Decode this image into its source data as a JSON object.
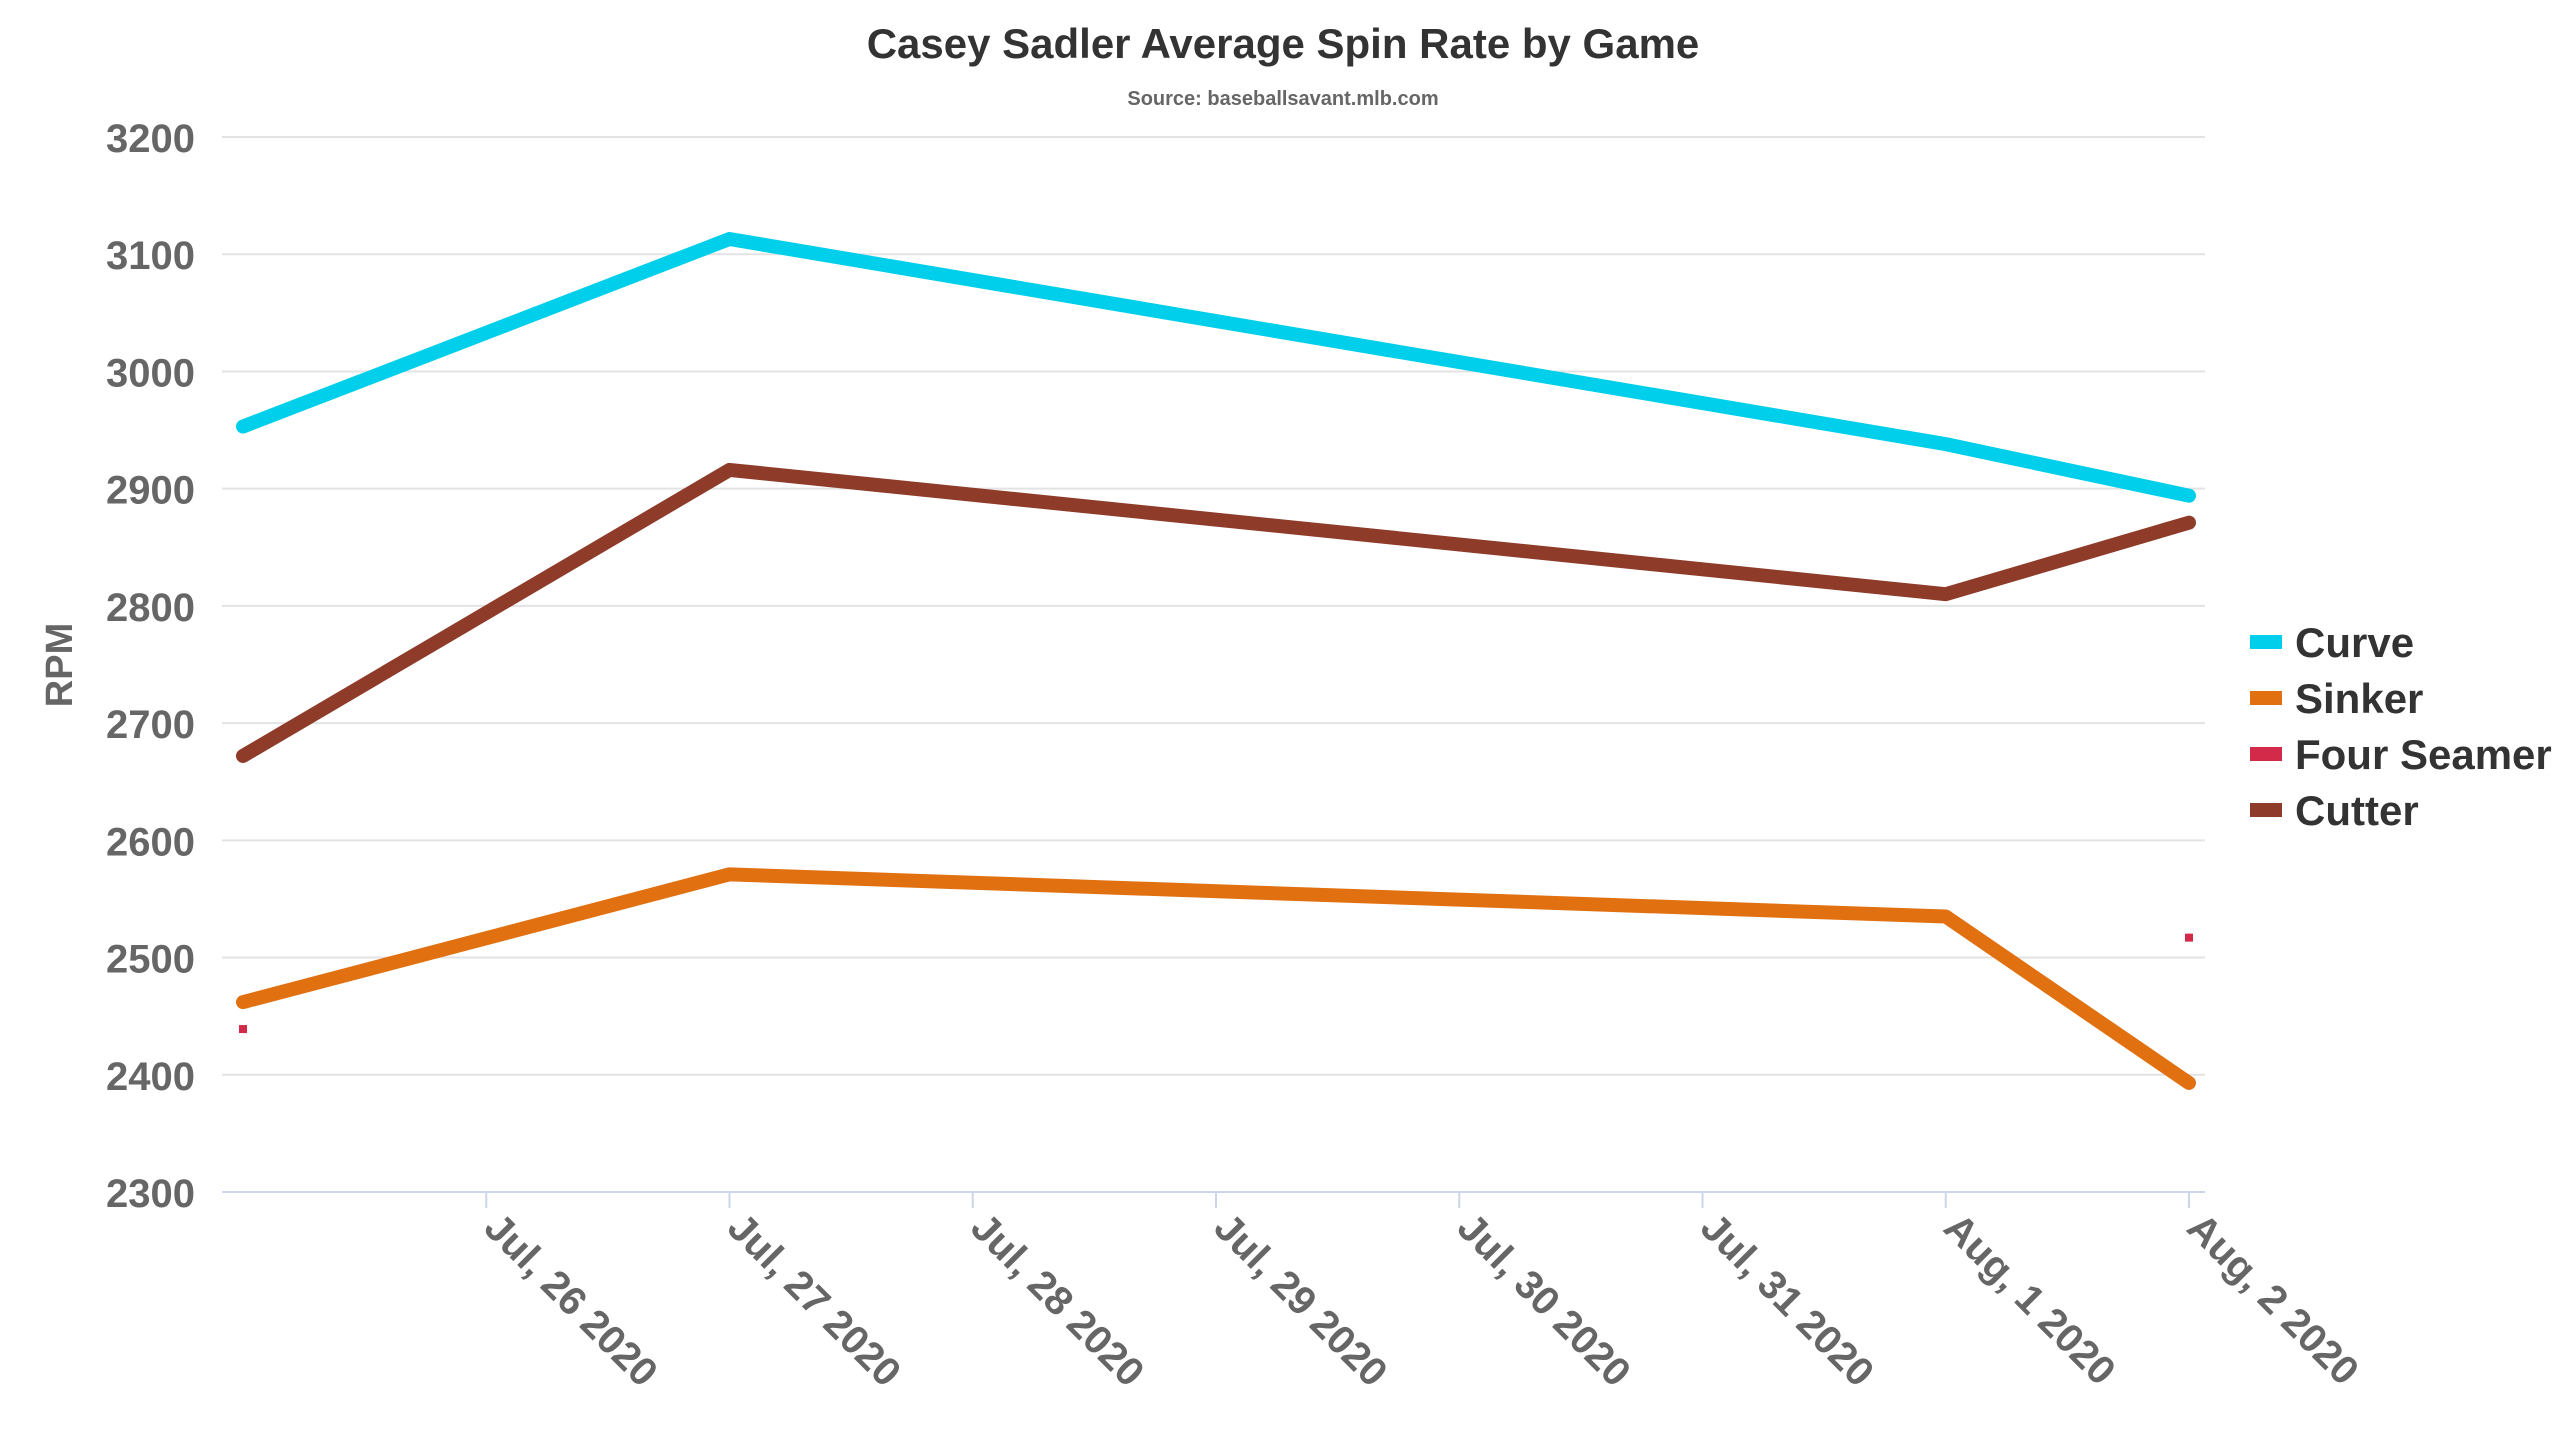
{
  "chart_data": {
    "type": "line",
    "title": "Casey Sadler Average Spin Rate by Game",
    "subtitle": "Source: baseballsavant.mlb.com",
    "ylabel": "RPM",
    "xlabel": "",
    "ylim": [
      2300,
      3200
    ],
    "yticks": [
      2300,
      2400,
      2500,
      2600,
      2700,
      2800,
      2900,
      3000,
      3100,
      3200
    ],
    "x_range": [
      "2020-07-25",
      "2020-08-02"
    ],
    "x_tick_labels": [
      "Jul, 26 2020",
      "Jul, 27 2020",
      "Jul, 28 2020",
      "Jul, 29 2020",
      "Jul, 30 2020",
      "Jul, 31 2020",
      "Aug, 1 2020",
      "Aug, 2 2020"
    ],
    "x_tick_dates": [
      "2020-07-26",
      "2020-07-27",
      "2020-07-28",
      "2020-07-29",
      "2020-07-30",
      "2020-07-31",
      "2020-08-01",
      "2020-08-02"
    ],
    "grid": true,
    "legend_position": "right",
    "series": [
      {
        "name": "Curve",
        "color": "#00cfeb",
        "style": "line",
        "points": [
          {
            "x": "2020-07-25",
            "y": 2953
          },
          {
            "x": "2020-07-27",
            "y": 3113
          },
          {
            "x": "2020-08-01",
            "y": 2938
          },
          {
            "x": "2020-08-02",
            "y": 2894
          }
        ]
      },
      {
        "name": "Sinker",
        "color": "#e07010",
        "style": "line",
        "points": [
          {
            "x": "2020-07-25",
            "y": 2462
          },
          {
            "x": "2020-07-27",
            "y": 2571
          },
          {
            "x": "2020-08-01",
            "y": 2535
          },
          {
            "x": "2020-08-02",
            "y": 2393
          }
        ]
      },
      {
        "name": "Four Seamer",
        "color": "#d42a4a",
        "style": "points",
        "points": [
          {
            "x": "2020-07-25",
            "y": 2439
          },
          {
            "x": "2020-08-02",
            "y": 2517
          }
        ]
      },
      {
        "name": "Cutter",
        "color": "#8e3b2a",
        "style": "line",
        "points": [
          {
            "x": "2020-07-25",
            "y": 2672
          },
          {
            "x": "2020-07-27",
            "y": 2916
          },
          {
            "x": "2020-08-01",
            "y": 2810
          },
          {
            "x": "2020-08-02",
            "y": 2871
          }
        ]
      }
    ]
  }
}
